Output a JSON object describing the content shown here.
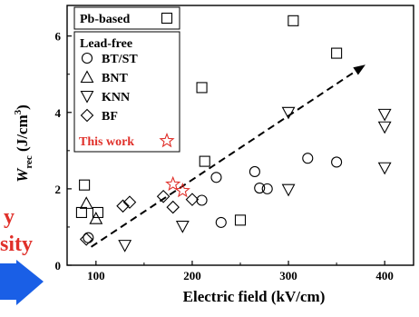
{
  "chart_data": {
    "type": "scatter",
    "xlabel": "Electric field (kV/cm)",
    "ylabel_main": "W",
    "ylabel_sub": "rec",
    "ylabel_unit": " (J/cm",
    "ylabel_sup": "3",
    "ylabel_close": ")",
    "xlim": [
      70,
      430
    ],
    "ylim": [
      0,
      6.8
    ],
    "xticks": [
      100,
      200,
      300,
      400
    ],
    "yticks": [
      0,
      2,
      4,
      6
    ],
    "grid": false,
    "legend_position": "top-left",
    "legend": {
      "group1_title": "Pb-based",
      "group2_title": "Lead-free",
      "entries": [
        {
          "label": "BT/ST",
          "marker": "circle"
        },
        {
          "label": "BNT",
          "marker": "triangle-up"
        },
        {
          "label": "KNN",
          "marker": "triangle-down"
        },
        {
          "label": "BF",
          "marker": "diamond"
        }
      ],
      "this_work_label": "This work"
    },
    "series": [
      {
        "name": "Pb-based",
        "marker": "square",
        "color": "#000000",
        "points": [
          [
            85,
            1.38
          ],
          [
            88,
            2.1
          ],
          [
            102,
            1.38
          ],
          [
            210,
            4.65
          ],
          [
            213,
            2.72
          ],
          [
            250,
            1.18
          ],
          [
            305,
            6.4
          ],
          [
            350,
            5.55
          ]
        ]
      },
      {
        "name": "BT/ST",
        "marker": "circle",
        "color": "#000000",
        "points": [
          [
            92,
            0.72
          ],
          [
            210,
            1.7
          ],
          [
            225,
            2.3
          ],
          [
            230,
            1.12
          ],
          [
            265,
            2.45
          ],
          [
            270,
            2.02
          ],
          [
            278,
            2.0
          ],
          [
            320,
            2.8
          ],
          [
            350,
            2.7
          ]
        ]
      },
      {
        "name": "BNT",
        "marker": "triangle-up",
        "color": "#000000",
        "points": [
          [
            90,
            1.62
          ],
          [
            100,
            1.22
          ]
        ]
      },
      {
        "name": "KNN",
        "marker": "triangle-down",
        "color": "#000000",
        "points": [
          [
            130,
            0.52
          ],
          [
            190,
            1.02
          ],
          [
            300,
            1.98
          ],
          [
            300,
            4.0
          ],
          [
            400,
            3.95
          ],
          [
            400,
            3.62
          ],
          [
            400,
            2.55
          ]
        ]
      },
      {
        "name": "BF",
        "marker": "diamond",
        "color": "#000000",
        "points": [
          [
            90,
            0.68
          ],
          [
            128,
            1.55
          ],
          [
            135,
            1.65
          ],
          [
            170,
            1.8
          ],
          [
            180,
            1.52
          ],
          [
            200,
            1.72
          ]
        ]
      },
      {
        "name": "This work",
        "marker": "star",
        "color": "#e0302a",
        "points": [
          [
            180,
            2.12
          ],
          [
            190,
            1.95
          ]
        ]
      }
    ],
    "trend_arrow": {
      "from": [
        95,
        0.48
      ],
      "to": [
        380,
        5.25
      ]
    }
  },
  "overlay": {
    "text1": "y",
    "text2": "sity",
    "text1_color": "#e0302a",
    "text2_color": "#e0302a",
    "arrow_color": "#1a5fe6"
  }
}
